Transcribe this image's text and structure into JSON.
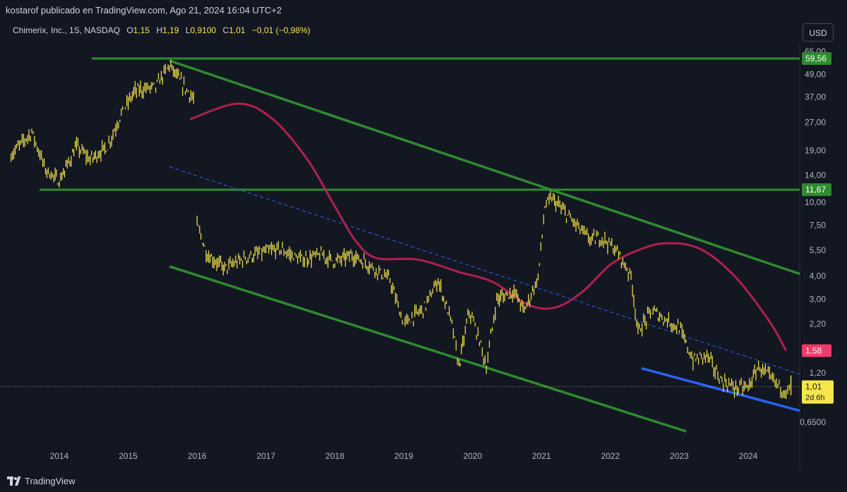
{
  "header": {
    "publisher": "kostarof publicado en TradingView.com, Ago 21, 2024 16:04 UTC+2"
  },
  "legend": {
    "symbol": "Chimerix, Inc., 1S, NASDAQ",
    "open_label": "O",
    "open_value": "1,15",
    "high_label": "H",
    "high_value": "1,19",
    "low_label": "L",
    "low_value": "0,9100",
    "close_label": "C",
    "close_value": "1,01",
    "change": "−0,01 (−0,98%)"
  },
  "currency_button": "USD",
  "footer": {
    "brand": "TradingView"
  },
  "colors": {
    "background": "#131722",
    "price": "#f7e64a",
    "channel": "#2e8b2e",
    "curve": "#b02050",
    "support": "#2962ff",
    "midline": "#2962ff",
    "label_red": "#f23a6a"
  },
  "chart_data": {
    "type": "line",
    "scale": "log",
    "x_ticks": [
      "2014",
      "2015",
      "2016",
      "2017",
      "2018",
      "2019",
      "2020",
      "2021",
      "2022",
      "2023",
      "2024"
    ],
    "y_ticks": [
      "65,00",
      "49,00",
      "37,00",
      "27,00",
      "19,00",
      "14,00",
      "10,00",
      "7,50",
      "5,50",
      "4,00",
      "3,00",
      "2,20",
      "1,20",
      "0,6500"
    ],
    "y_tick_values": [
      65,
      49,
      37,
      27,
      19,
      14,
      10,
      7.5,
      5.5,
      4,
      3,
      2.2,
      1.2,
      0.65
    ],
    "price_labels": [
      {
        "text": "59,56",
        "value": 59.56,
        "color": "#2e8b2e"
      },
      {
        "text": "11,67",
        "value": 11.67,
        "color": "#2e8b2e"
      },
      {
        "text": "1,58",
        "value": 1.58,
        "color": "#f23a6a"
      }
    ],
    "last_price": {
      "value": 1.01,
      "text": "1,01",
      "countdown": "2d 6h"
    },
    "series": [
      {
        "points": [
          [
            2013.3,
            18.0
          ],
          [
            2013.6,
            24.0
          ],
          [
            2013.8,
            15.0
          ],
          [
            2014.0,
            13.0
          ],
          [
            2014.25,
            20.0
          ],
          [
            2014.45,
            17.0
          ],
          [
            2014.7,
            20.0
          ],
          [
            2014.9,
            30.0
          ],
          [
            2015.1,
            40.0
          ],
          [
            2015.4,
            42.0
          ],
          [
            2015.6,
            55.0
          ],
          [
            2015.75,
            45.0
          ],
          [
            2015.95,
            36.0
          ],
          [
            2016.0,
            7.5
          ],
          [
            2016.15,
            5.2
          ],
          [
            2016.4,
            4.4
          ],
          [
            2016.7,
            5.0
          ],
          [
            2016.9,
            5.3
          ],
          [
            2017.2,
            5.6
          ],
          [
            2017.5,
            4.9
          ],
          [
            2017.8,
            5.2
          ],
          [
            2018.0,
            4.8
          ],
          [
            2018.25,
            5.2
          ],
          [
            2018.5,
            4.6
          ],
          [
            2018.8,
            3.8
          ],
          [
            2019.0,
            2.2
          ],
          [
            2019.3,
            2.7
          ],
          [
            2019.5,
            3.8
          ],
          [
            2019.7,
            2.2
          ],
          [
            2019.8,
            1.3
          ],
          [
            2019.95,
            2.6
          ],
          [
            2020.1,
            1.8
          ],
          [
            2020.2,
            1.3
          ],
          [
            2020.35,
            3.0
          ],
          [
            2020.6,
            3.3
          ],
          [
            2020.75,
            2.6
          ],
          [
            2020.95,
            3.9
          ],
          [
            2021.05,
            9.5
          ],
          [
            2021.15,
            10.5
          ],
          [
            2021.4,
            8.3
          ],
          [
            2021.7,
            6.3
          ],
          [
            2021.9,
            6.4
          ],
          [
            2022.1,
            5.4
          ],
          [
            2022.3,
            4.0
          ],
          [
            2022.4,
            2.0
          ],
          [
            2022.6,
            2.6
          ],
          [
            2022.75,
            2.4
          ],
          [
            2023.0,
            2.1
          ],
          [
            2023.2,
            1.4
          ],
          [
            2023.4,
            1.5
          ],
          [
            2023.6,
            1.1
          ],
          [
            2023.8,
            1.0
          ],
          [
            2024.0,
            1.0
          ],
          [
            2024.15,
            1.3
          ],
          [
            2024.35,
            1.1
          ],
          [
            2024.55,
            0.95
          ],
          [
            2024.62,
            1.01
          ]
        ]
      }
    ],
    "drawings": {
      "horizontal_lines": [
        59.56,
        11.67
      ],
      "upper_channel": [
        [
          2015.6,
          58.0
        ],
        [
          2024.75,
          4.1
        ]
      ],
      "lower_channel": [
        [
          2015.6,
          4.5
        ],
        [
          2023.1,
          0.58
        ]
      ],
      "mid_line": [
        [
          2015.6,
          15.5
        ],
        [
          2024.75,
          1.18
        ]
      ],
      "support_line": [
        [
          2022.45,
          1.27
        ],
        [
          2024.75,
          0.75
        ]
      ],
      "curve": [
        [
          2015.9,
          28.0
        ],
        [
          2016.6,
          34.0
        ],
        [
          2017.1,
          28.0
        ],
        [
          2017.6,
          17.0
        ],
        [
          2018.0,
          9.5
        ],
        [
          2018.3,
          6.2
        ],
        [
          2018.6,
          5.0
        ],
        [
          2019.2,
          4.9
        ],
        [
          2019.8,
          4.2
        ],
        [
          2020.3,
          3.7
        ],
        [
          2020.8,
          2.8
        ],
        [
          2021.2,
          2.7
        ],
        [
          2021.6,
          3.3
        ],
        [
          2022.0,
          4.6
        ],
        [
          2022.4,
          5.5
        ],
        [
          2022.8,
          6.0
        ],
        [
          2023.3,
          5.6
        ],
        [
          2023.8,
          4.0
        ],
        [
          2024.3,
          2.3
        ],
        [
          2024.55,
          1.58
        ]
      ]
    }
  }
}
